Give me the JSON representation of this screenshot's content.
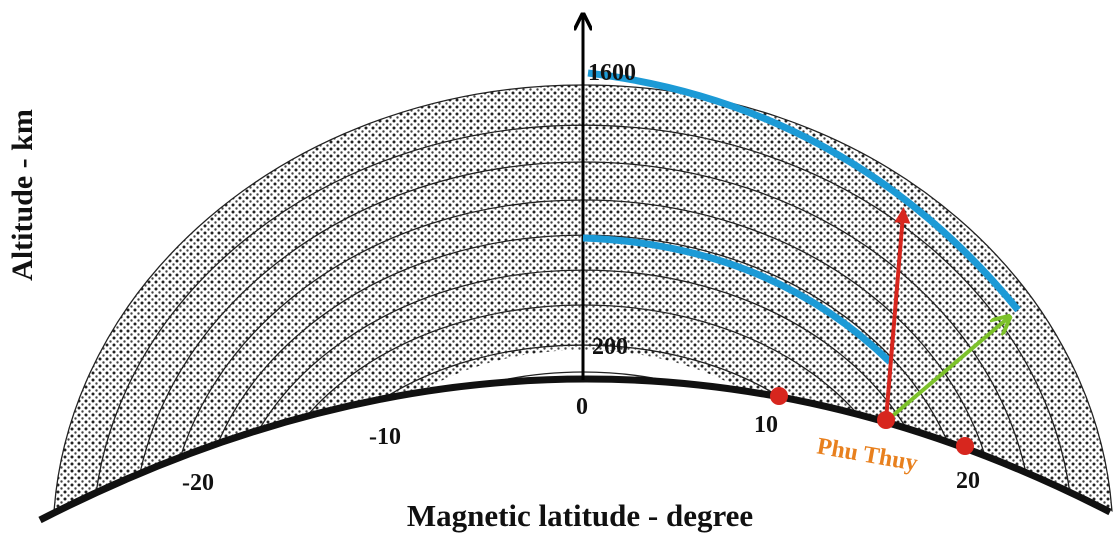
{
  "axis_labels": {
    "y": "Altitude - km",
    "x": "Magnetic latitude - degree"
  },
  "altitude_labels": [
    "1600",
    "200"
  ],
  "latitude_labels": [
    "0",
    "10",
    "-10",
    "20",
    "-20"
  ],
  "station": "Phu Thuy"
}
